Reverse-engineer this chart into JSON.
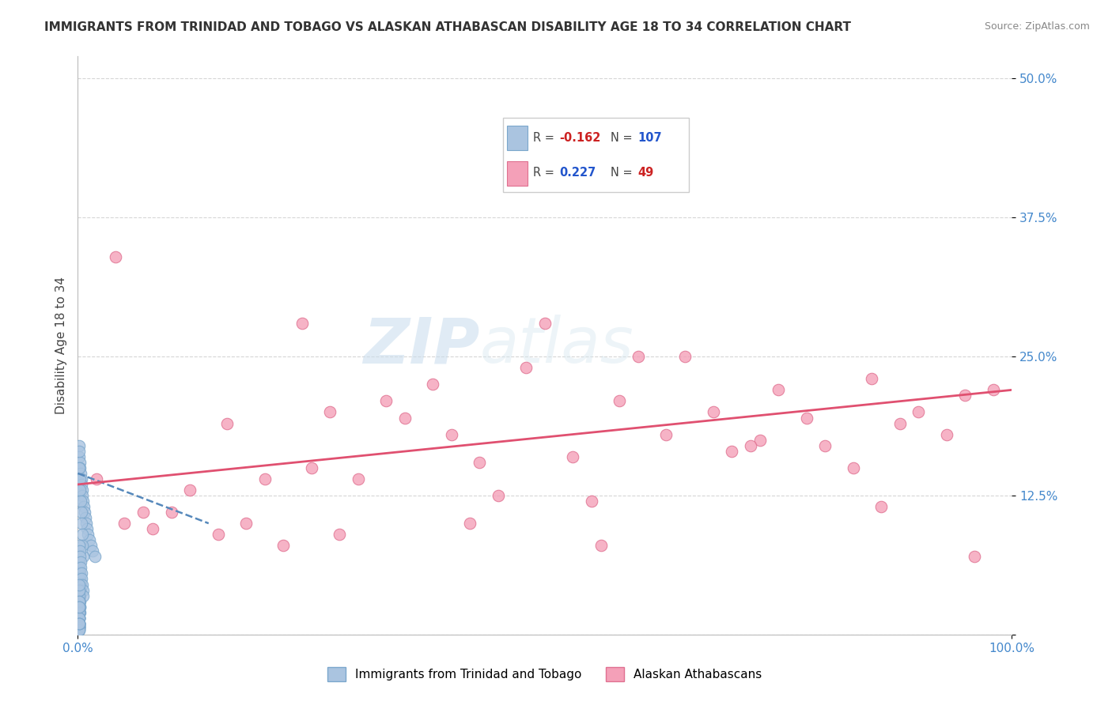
{
  "title": "IMMIGRANTS FROM TRINIDAD AND TOBAGO VS ALASKAN ATHABASCAN DISABILITY AGE 18 TO 34 CORRELATION CHART",
  "source": "Source: ZipAtlas.com",
  "ylabel": "Disability Age 18 to 34",
  "xlim": [
    0,
    100
  ],
  "ylim": [
    0,
    52
  ],
  "yticks": [
    0,
    12.5,
    25.0,
    37.5,
    50.0
  ],
  "xtick_labels": [
    "0.0%",
    "100.0%"
  ],
  "ytick_labels": [
    "",
    "12.5%",
    "25.0%",
    "37.5%",
    "50.0%"
  ],
  "blue_color": "#aac4e0",
  "blue_edge": "#7ba7cc",
  "pink_color": "#f4a0b8",
  "pink_edge": "#e07090",
  "trendline_blue": "#5588bb",
  "trendline_pink": "#e05070",
  "legend_R_blue": "-0.162",
  "legend_N_blue": "107",
  "legend_R_pink": "0.227",
  "legend_N_pink": "49",
  "watermark": "ZIPatlas",
  "legend1_label": "Immigrants from Trinidad and Tobago",
  "legend2_label": "Alaskan Athabascans",
  "blue_x": [
    0.1,
    0.15,
    0.2,
    0.25,
    0.3,
    0.35,
    0.4,
    0.45,
    0.5,
    0.55,
    0.6,
    0.7,
    0.8,
    0.9,
    1.0,
    1.1,
    1.2,
    1.4,
    1.6,
    1.8,
    0.1,
    0.15,
    0.2,
    0.25,
    0.3,
    0.35,
    0.4,
    0.45,
    0.5,
    0.55,
    0.1,
    0.15,
    0.2,
    0.25,
    0.3,
    0.1,
    0.15,
    0.2,
    0.25,
    0.3,
    0.1,
    0.15,
    0.2,
    0.25,
    0.1,
    0.15,
    0.2,
    0.1,
    0.15,
    0.1,
    0.12,
    0.18,
    0.22,
    0.28,
    0.32,
    0.38,
    0.42,
    0.48,
    0.52,
    0.58,
    0.1,
    0.12,
    0.15,
    0.18,
    0.2,
    0.1,
    0.12,
    0.15,
    0.18,
    0.1,
    0.12,
    0.15,
    0.1,
    0.12,
    0.1,
    0.15,
    0.12,
    0.1,
    0.15,
    0.12,
    0.1,
    0.12,
    0.15,
    0.1,
    0.12,
    0.1,
    0.15,
    0.12,
    0.1,
    0.12,
    0.1,
    0.12,
    0.15,
    0.1,
    0.12,
    0.1,
    0.15,
    0.12,
    0.1,
    0.15,
    0.1,
    0.12,
    0.15,
    0.1,
    0.12,
    0.1,
    0.15
  ],
  "blue_y": [
    17.0,
    16.0,
    15.5,
    15.0,
    14.5,
    14.0,
    13.5,
    13.0,
    12.5,
    12.0,
    11.5,
    11.0,
    10.5,
    10.0,
    9.5,
    9.0,
    8.5,
    8.0,
    7.5,
    7.0,
    16.5,
    15.0,
    14.0,
    13.0,
    12.0,
    11.0,
    10.0,
    9.0,
    8.0,
    7.0,
    6.5,
    6.0,
    5.5,
    5.0,
    4.5,
    6.0,
    5.5,
    5.0,
    4.5,
    4.0,
    5.0,
    4.5,
    4.0,
    3.5,
    4.0,
    3.5,
    3.0,
    3.5,
    3.0,
    3.0,
    8.0,
    7.5,
    7.0,
    6.5,
    6.0,
    5.5,
    5.0,
    4.5,
    4.0,
    3.5,
    2.5,
    2.5,
    2.5,
    2.5,
    2.5,
    2.0,
    2.0,
    2.0,
    2.0,
    2.0,
    1.5,
    1.5,
    1.5,
    1.5,
    1.0,
    1.0,
    1.0,
    1.0,
    1.0,
    0.8,
    0.8,
    0.8,
    0.8,
    0.6,
    0.6,
    0.6,
    0.6,
    0.4,
    0.4,
    0.4,
    3.0,
    3.0,
    3.5,
    2.0,
    2.0,
    1.5,
    1.5,
    1.0,
    1.0,
    1.0,
    4.0,
    4.0,
    4.5,
    3.0,
    3.0,
    2.5,
    2.5
  ],
  "pink_x": [
    2.0,
    5.0,
    7.0,
    8.0,
    10.0,
    12.0,
    15.0,
    18.0,
    20.0,
    22.0,
    25.0,
    27.0,
    30.0,
    33.0,
    35.0,
    38.0,
    40.0,
    43.0,
    45.0,
    48.0,
    50.0,
    53.0,
    55.0,
    58.0,
    60.0,
    63.0,
    65.0,
    68.0,
    70.0,
    73.0,
    75.0,
    78.0,
    80.0,
    83.0,
    85.0,
    88.0,
    90.0,
    93.0,
    95.0,
    98.0,
    4.0,
    16.0,
    28.0,
    42.0,
    56.0,
    72.0,
    86.0,
    96.0,
    24.0
  ],
  "pink_y": [
    14.0,
    10.0,
    11.0,
    9.5,
    11.0,
    13.0,
    9.0,
    10.0,
    14.0,
    8.0,
    15.0,
    20.0,
    14.0,
    21.0,
    19.5,
    22.5,
    18.0,
    15.5,
    12.5,
    24.0,
    28.0,
    16.0,
    12.0,
    21.0,
    25.0,
    18.0,
    25.0,
    20.0,
    16.5,
    17.5,
    22.0,
    19.5,
    17.0,
    15.0,
    23.0,
    19.0,
    20.0,
    18.0,
    21.5,
    22.0,
    34.0,
    19.0,
    9.0,
    10.0,
    8.0,
    17.0,
    11.5,
    7.0,
    28.0
  ],
  "blue_trend_x": [
    0.0,
    14.0
  ],
  "blue_trend_y": [
    14.5,
    10.0
  ],
  "pink_trend_x": [
    0.0,
    100.0
  ],
  "pink_trend_y": [
    13.5,
    22.0
  ]
}
